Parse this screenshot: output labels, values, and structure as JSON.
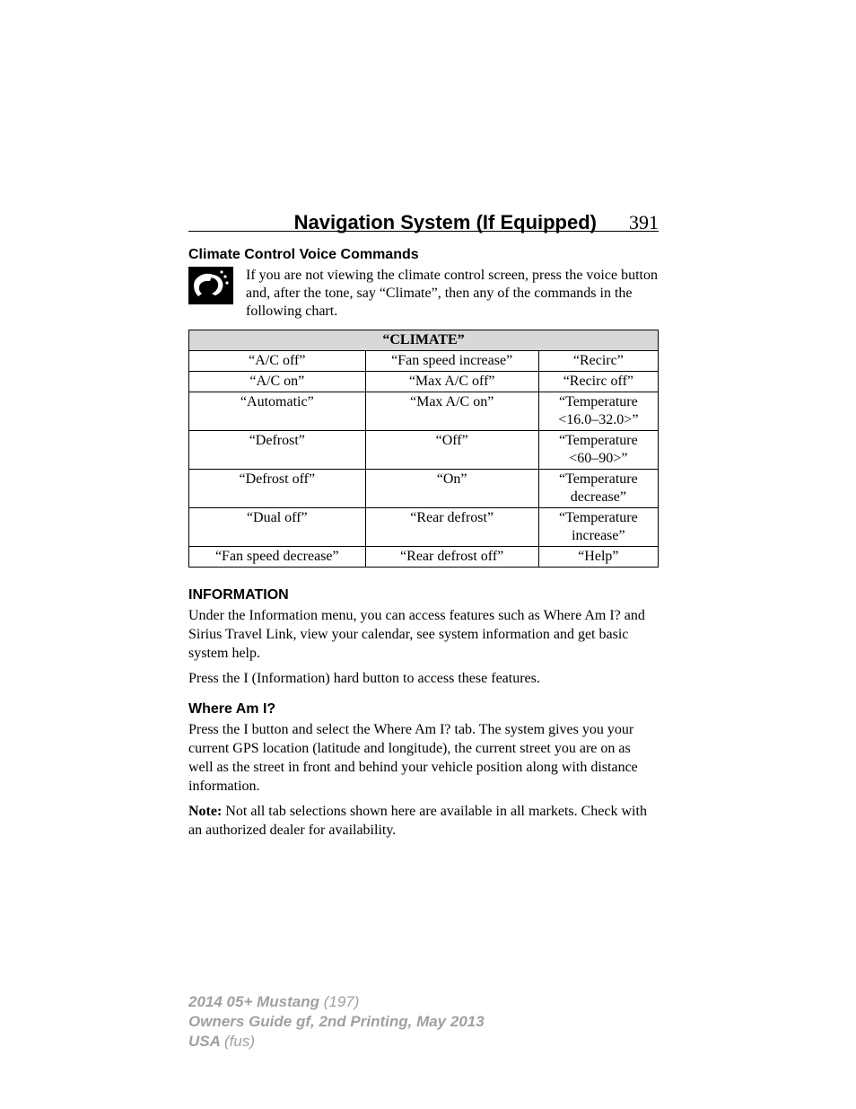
{
  "header": {
    "title": "Navigation System (If Equipped)",
    "page_number": "391"
  },
  "section1": {
    "heading": "Climate Control Voice Commands",
    "intro": "If you are not viewing the climate control screen, press the voice button and, after the tone, say “Climate”, then any of the commands in the following chart."
  },
  "table": {
    "header": "“CLIMATE”",
    "header_bg": "#d8d8da",
    "border_color": "#000000",
    "columns": 3,
    "rows": [
      [
        "“A/C off”",
        "“Fan speed increase”",
        "“Recirc”"
      ],
      [
        "“A/C on”",
        "“Max A/C off”",
        "“Recirc off”"
      ],
      [
        "“Automatic”",
        "“Max A/C on”",
        "“Temperature\n<16.0–32.0>”"
      ],
      [
        "“Defrost”",
        "“Off”",
        "“Temperature\n<60–90>”"
      ],
      [
        "“Defrost off”",
        "“On”",
        "“Temperature\ndecrease”"
      ],
      [
        "“Dual off”",
        "“Rear defrost”",
        "“Temperature\nincrease”"
      ],
      [
        "“Fan speed decrease”",
        "“Rear defrost off”",
        "“Help”"
      ]
    ]
  },
  "section2": {
    "heading": "INFORMATION",
    "p1": "Under the Information menu, you can access features such as Where Am I? and Sirius Travel Link, view your calendar, see system information and get basic system help.",
    "p2": "Press the I (Information) hard button to access these features."
  },
  "section3": {
    "heading": "Where Am I?",
    "p1": "Press the I button and select the Where Am I? tab. The system gives you your current GPS location (latitude and longitude), the current street you are on as well as the street in front and behind your vehicle position along with distance information.",
    "note_label": "Note:",
    "note_body": " Not all tab selections shown here are available in all markets. Check with an authorized dealer for availability."
  },
  "footer": {
    "l1a": "2014 05+ Mustang ",
    "l1b": "(197)",
    "l2": "Owners Guide gf, 2nd Printing, May 2013",
    "l3a": "USA ",
    "l3b": "(fus)"
  },
  "icon": {
    "name": "voice-command-icon"
  }
}
